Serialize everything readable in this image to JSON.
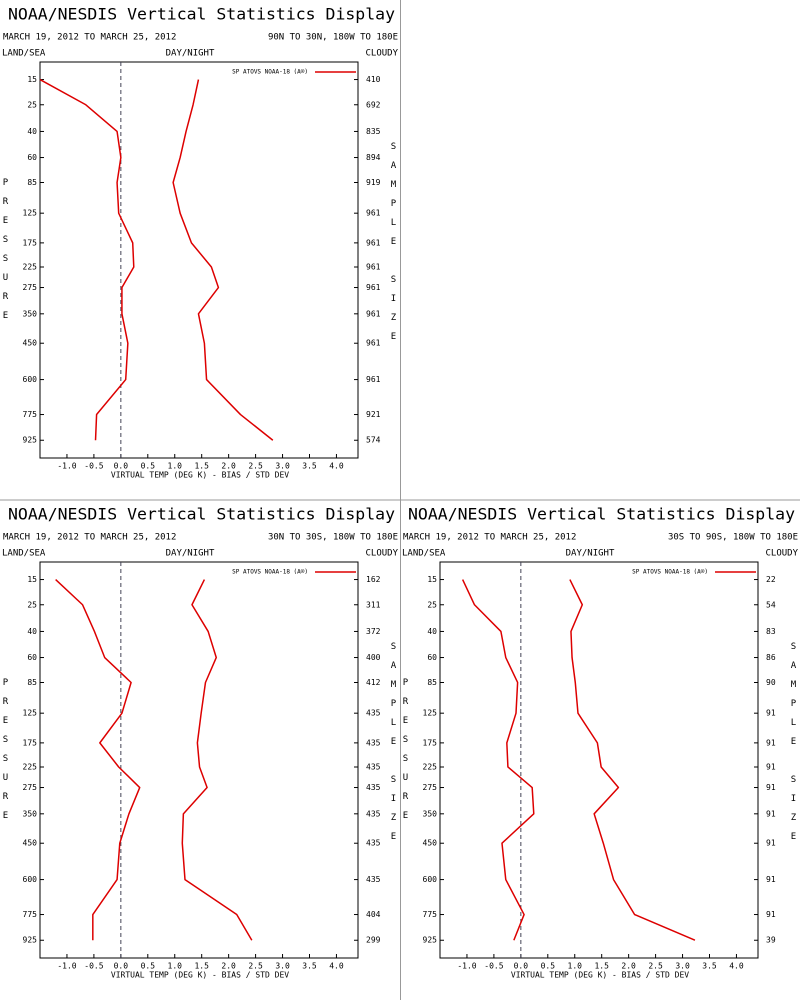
{
  "chart_data": [
    {
      "type": "line",
      "title": "NOAA/NESDIS Vertical Statistics Display",
      "date_range": "MARCH 19, 2012 TO MARCH 25, 2012",
      "region": "90N TO 30N, 180W TO 180E",
      "left_header": "LAND/SEA",
      "center_header": "DAY/NIGHT",
      "right_header": "CLOUDY",
      "legend": "SP ATOVS NOAA-18 (A®)",
      "xlabel": "VIRTUAL TEMP (DEG K) - BIAS / STD DEV",
      "ylabel": "PRESSURE",
      "y2label": "SAMPLE SIZE",
      "y": [
        15,
        25,
        40,
        60,
        85,
        125,
        175,
        225,
        275,
        350,
        450,
        600,
        775,
        925
      ],
      "sample_size": [
        410,
        692,
        835,
        894,
        919,
        961,
        961,
        961,
        961,
        961,
        961,
        961,
        921,
        574
      ],
      "series": [
        {
          "color": "#dd0000",
          "values": [
            -1.5,
            -0.65,
            -0.07,
            0.0,
            -0.07,
            -0.04,
            0.22,
            0.24,
            0.02,
            0.02,
            0.13,
            0.09,
            -0.45,
            -0.47
          ]
        },
        {
          "color": "#dd0000",
          "values": [
            1.44,
            1.34,
            1.21,
            1.1,
            0.97,
            1.1,
            1.31,
            1.68,
            1.81,
            1.44,
            1.55,
            1.59,
            2.22,
            2.82
          ]
        }
      ],
      "xlim": [
        -1.5,
        4.4
      ],
      "xticks": [
        {
          "value": -1,
          "label": "-1.0"
        },
        -0.5,
        {
          "value": 0,
          "label": "0.0"
        },
        0.5,
        {
          "value": 1,
          "label": "1.0"
        },
        1.5,
        {
          "value": 2,
          "label": "2.0"
        },
        2.5,
        {
          "value": 3,
          "label": "3.0"
        },
        3.5,
        {
          "value": 4,
          "label": "4.0"
        }
      ],
      "ylim": [
        10,
        1040
      ],
      "y_power": 0.286,
      "y_inverted": true,
      "reference_line": 0
    },
    {
      "type": "line",
      "title": "NOAA/NESDIS Vertical Statistics Display",
      "date_range": "MARCH 19, 2012 TO MARCH 25, 2012",
      "region": "30N TO 30S, 180W TO 180E",
      "left_header": "LAND/SEA",
      "center_header": "DAY/NIGHT",
      "right_header": "CLOUDY",
      "legend": "SP ATOVS NOAA-18 (A®)",
      "xlabel": "VIRTUAL TEMP (DEG K) - BIAS / STD DEV",
      "ylabel": "PRESSURE",
      "y2label": "SAMPLE SIZE",
      "y": [
        15,
        25,
        40,
        60,
        85,
        125,
        175,
        225,
        275,
        350,
        450,
        600,
        775,
        925
      ],
      "sample_size": [
        162,
        311,
        372,
        400,
        412,
        435,
        435,
        435,
        435,
        435,
        435,
        435,
        404,
        299
      ],
      "series": [
        {
          "color": "#dd0000",
          "values": [
            -1.21,
            -0.71,
            -0.49,
            -0.3,
            0.19,
            0.02,
            -0.39,
            -0.04,
            0.35,
            0.15,
            -0.02,
            -0.07,
            -0.52,
            -0.52
          ]
        },
        {
          "color": "#dd0000",
          "values": [
            1.55,
            1.32,
            1.62,
            1.77,
            1.57,
            1.49,
            1.42,
            1.46,
            1.6,
            1.16,
            1.14,
            1.19,
            2.15,
            2.43
          ]
        }
      ],
      "xlim": [
        -1.5,
        4.4
      ],
      "xticks": [
        {
          "value": -1,
          "label": "-1.0"
        },
        -0.5,
        {
          "value": 0,
          "label": "0.0"
        },
        0.5,
        {
          "value": 1,
          "label": "1.0"
        },
        1.5,
        {
          "value": 2,
          "label": "2.0"
        },
        2.5,
        {
          "value": 3,
          "label": "3.0"
        },
        3.5,
        {
          "value": 4,
          "label": "4.0"
        }
      ],
      "ylim": [
        10,
        1040
      ],
      "y_power": 0.286,
      "y_inverted": true,
      "reference_line": 0
    },
    {
      "type": "line",
      "title": "NOAA/NESDIS Vertical Statistics Display",
      "date_range": "MARCH 19, 2012 TO MARCH 25, 2012",
      "region": "30S TO 90S, 180W TO 180E",
      "left_header": "LAND/SEA",
      "center_header": "DAY/NIGHT",
      "right_header": "CLOUDY",
      "legend": "SP ATOVS NOAA-18 (A®)",
      "xlabel": "VIRTUAL TEMP (DEG K) - BIAS / STD DEV",
      "ylabel": "PRESSURE",
      "y2label": "SAMPLE SIZE",
      "y": [
        15,
        25,
        40,
        60,
        85,
        125,
        175,
        225,
        275,
        350,
        450,
        600,
        775,
        925
      ],
      "sample_size": [
        22,
        54,
        83,
        86,
        90,
        91,
        91,
        91,
        91,
        91,
        91,
        91,
        91,
        39
      ],
      "series": [
        {
          "color": "#dd0000",
          "values": [
            -1.08,
            -0.86,
            -0.37,
            -0.28,
            -0.06,
            -0.09,
            -0.26,
            -0.24,
            0.21,
            0.24,
            -0.35,
            -0.28,
            0.06,
            -0.13
          ]
        },
        {
          "color": "#dd0000",
          "values": [
            0.91,
            1.14,
            0.93,
            0.95,
            1.01,
            1.06,
            1.42,
            1.49,
            1.81,
            1.36,
            1.53,
            1.72,
            2.11,
            3.23
          ]
        }
      ],
      "xlim": [
        -1.5,
        4.4
      ],
      "xticks": [
        {
          "value": -1,
          "label": "-1.0"
        },
        -0.5,
        {
          "value": 0,
          "label": "0.0"
        },
        0.5,
        {
          "value": 1,
          "label": "1.0"
        },
        1.5,
        {
          "value": 2,
          "label": "2.0"
        },
        2.5,
        {
          "value": 3,
          "label": "3.0"
        },
        3.5,
        {
          "value": 4,
          "label": "4.0"
        }
      ],
      "ylim": [
        10,
        1040
      ],
      "y_power": 0.286,
      "y_inverted": true,
      "reference_line": 0
    }
  ]
}
